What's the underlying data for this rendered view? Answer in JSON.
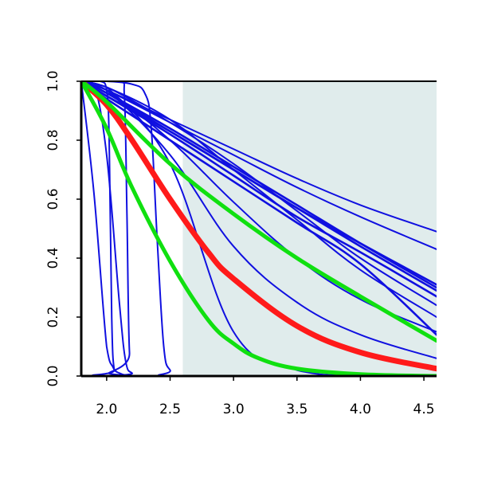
{
  "chart_data": {
    "type": "line",
    "title": "",
    "xlabel": "",
    "ylabel": "",
    "xlim": [
      1.8,
      4.6
    ],
    "ylim": [
      0.0,
      1.0
    ],
    "x_ticks": [
      2.0,
      2.5,
      3.0,
      3.5,
      4.0,
      4.5
    ],
    "x_tick_labels": [
      "2.0",
      "2.5",
      "3.0",
      "3.5",
      "4.0",
      "4.5"
    ],
    "y_ticks": [
      0.0,
      0.2,
      0.4,
      0.6,
      0.8,
      1.0
    ],
    "y_tick_labels": [
      "0.0",
      "0.2",
      "0.4",
      "0.6",
      "0.8",
      "1.0"
    ],
    "shaded_region": {
      "x_from": 2.6,
      "x_to": 4.6,
      "color": "#e0ecec"
    },
    "grid": false,
    "legend": "none",
    "colors": {
      "blue": "#1010e0",
      "red": "#ff1a1a",
      "green": "#10e010"
    },
    "series": [
      {
        "color": "blue",
        "kind": "bold",
        "x": [
          1.8,
          2.0,
          2.5,
          3.0,
          3.5,
          4.0,
          4.6
        ],
        "y": [
          1.0,
          0.94,
          0.8,
          0.66,
          0.52,
          0.38,
          0.14
        ]
      },
      {
        "color": "blue",
        "kind": "bold",
        "x": [
          1.8,
          2.0,
          2.5,
          3.0,
          3.5,
          4.0,
          4.6
        ],
        "y": [
          1.0,
          0.95,
          0.82,
          0.68,
          0.54,
          0.42,
          0.27
        ]
      },
      {
        "color": "blue",
        "kind": "bold",
        "x": [
          1.8,
          2.0,
          2.5,
          3.0,
          3.5,
          4.0,
          4.6
        ],
        "y": [
          1.0,
          0.95,
          0.83,
          0.7,
          0.57,
          0.45,
          0.31
        ]
      },
      {
        "color": "blue",
        "kind": "bold",
        "x": [
          1.8,
          2.0,
          2.5,
          3.0,
          3.5,
          4.0,
          4.6
        ],
        "y": [
          1.0,
          0.96,
          0.84,
          0.71,
          0.58,
          0.45,
          0.3
        ]
      },
      {
        "color": "blue",
        "kind": "bold",
        "x": [
          1.8,
          2.0,
          2.5,
          3.0,
          3.5,
          4.0,
          4.6
        ],
        "y": [
          1.0,
          0.96,
          0.83,
          0.7,
          0.57,
          0.44,
          0.29
        ]
      },
      {
        "color": "blue",
        "x": [
          1.8,
          2.0,
          2.5,
          3.0,
          3.5,
          4.0,
          4.6
        ],
        "y": [
          1.0,
          0.97,
          0.87,
          0.77,
          0.67,
          0.58,
          0.49
        ]
      },
      {
        "color": "blue",
        "x": [
          1.8,
          2.0,
          2.5,
          3.0,
          3.5,
          4.0,
          4.6
        ],
        "y": [
          1.0,
          0.97,
          0.86,
          0.75,
          0.64,
          0.54,
          0.43
        ]
      },
      {
        "color": "blue",
        "x": [
          1.8,
          2.0,
          2.5,
          3.0,
          3.5,
          4.0,
          4.6
        ],
        "y": [
          1.0,
          0.98,
          0.86,
          0.72,
          0.56,
          0.4,
          0.24
        ]
      },
      {
        "color": "blue",
        "x": [
          1.8,
          2.0,
          2.5,
          3.0,
          3.5,
          4.0,
          4.6
        ],
        "y": [
          1.0,
          0.98,
          0.87,
          0.7,
          0.53,
          0.36,
          0.2
        ]
      },
      {
        "color": "blue",
        "x": [
          1.8,
          2.0,
          2.5,
          3.0,
          3.5,
          4.0,
          4.6
        ],
        "y": [
          1.0,
          0.97,
          0.8,
          0.59,
          0.4,
          0.26,
          0.15
        ]
      },
      {
        "color": "blue",
        "x": [
          1.8,
          2.0,
          2.5,
          3.0,
          3.5,
          4.0,
          4.6
        ],
        "y": [
          1.0,
          0.97,
          0.75,
          0.44,
          0.25,
          0.14,
          0.06
        ]
      },
      {
        "color": "blue",
        "x": [
          1.8,
          2.0,
          2.5,
          3.0,
          3.5,
          4.0,
          4.6
        ],
        "y": [
          1.0,
          0.98,
          0.72,
          0.15,
          0.02,
          0.0,
          0.0
        ]
      },
      {
        "color": "blue",
        "x": [
          1.8,
          1.9,
          2.0,
          2.05,
          2.1,
          2.2,
          2.4,
          4.6
        ],
        "y": [
          1.0,
          0.62,
          0.1,
          0.03,
          0.01,
          0.0,
          0.0,
          0.0
        ]
      },
      {
        "color": "blue",
        "x": [
          1.8,
          1.9,
          2.0,
          2.1,
          2.15,
          2.2,
          2.3,
          4.6
        ],
        "y": [
          1.0,
          0.99,
          0.75,
          0.25,
          0.05,
          0.01,
          0.0,
          0.0
        ]
      },
      {
        "color": "blue",
        "x": [
          1.8,
          1.95,
          2.0,
          2.02,
          2.04,
          2.06,
          2.1,
          4.6
        ],
        "y": [
          1.0,
          1.0,
          0.97,
          0.8,
          0.2,
          0.02,
          0.0,
          0.0
        ]
      },
      {
        "color": "blue",
        "x": [
          1.8,
          2.1,
          2.14,
          2.16,
          2.18,
          2.22,
          4.6
        ],
        "y": [
          1.0,
          1.0,
          0.95,
          0.55,
          0.08,
          0.0,
          0.0
        ]
      },
      {
        "color": "blue",
        "x": [
          1.8,
          2.0,
          2.2,
          2.3,
          2.35,
          2.4,
          2.45,
          2.5,
          2.6,
          4.6
        ],
        "y": [
          1.0,
          1.0,
          0.99,
          0.96,
          0.85,
          0.45,
          0.1,
          0.02,
          0.0,
          0.0
        ]
      },
      {
        "color": "red",
        "kind": "thick",
        "x": [
          1.8,
          2.0,
          2.2,
          2.5,
          2.8,
          3.0,
          3.5,
          4.0,
          4.6
        ],
        "y": [
          1.0,
          0.92,
          0.8,
          0.6,
          0.42,
          0.33,
          0.17,
          0.08,
          0.025
        ]
      },
      {
        "color": "green",
        "kind": "thick",
        "x": [
          1.8,
          2.0,
          2.5,
          3.0,
          3.5,
          4.0,
          4.6
        ],
        "y": [
          1.0,
          0.93,
          0.72,
          0.55,
          0.4,
          0.27,
          0.12
        ]
      },
      {
        "color": "green",
        "kind": "thick",
        "x": [
          1.8,
          2.0,
          2.2,
          2.5,
          2.8,
          3.0,
          3.2,
          3.5,
          4.0,
          4.6
        ],
        "y": [
          1.0,
          0.84,
          0.64,
          0.39,
          0.19,
          0.11,
          0.06,
          0.025,
          0.006,
          0.0
        ]
      }
    ]
  }
}
